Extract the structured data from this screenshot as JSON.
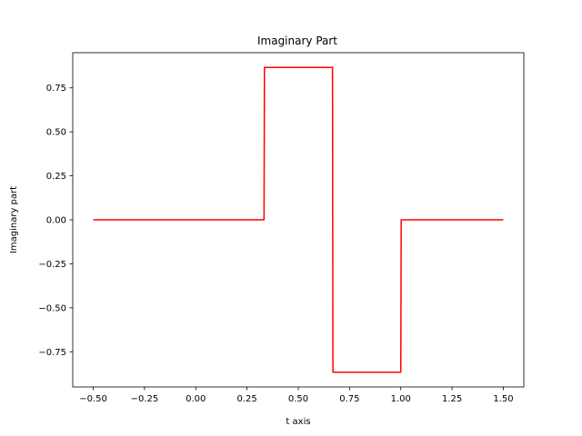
{
  "chart_data": {
    "type": "line",
    "title": "Imaginary Part",
    "xlabel": "t axis",
    "ylabel": "Imaginary part",
    "xlim": [
      -0.6,
      1.6
    ],
    "ylim": [
      -0.95,
      0.95
    ],
    "grid": false,
    "x_ticks": [
      -0.5,
      -0.25,
      0.0,
      0.25,
      0.5,
      0.75,
      1.0,
      1.25,
      1.5
    ],
    "x_tick_labels": [
      "−0.50",
      "−0.25",
      "0.00",
      "0.25",
      "0.50",
      "0.75",
      "1.00",
      "1.25",
      "1.50"
    ],
    "y_ticks": [
      0.75,
      0.5,
      0.25,
      0.0,
      -0.25,
      -0.5,
      -0.75
    ],
    "y_tick_labels": [
      "0.75",
      "0.50",
      "0.25",
      "0.00",
      "−0.25",
      "−0.50",
      "−0.75"
    ],
    "series": [
      {
        "color": "#ff0000",
        "x": [
          -0.5,
          0.333,
          0.335,
          0.667,
          0.669,
          1.0,
          1.002,
          1.5
        ],
        "y": [
          0.0,
          0.0,
          0.866,
          0.866,
          -0.866,
          -0.866,
          0.0,
          0.0
        ]
      }
    ]
  }
}
